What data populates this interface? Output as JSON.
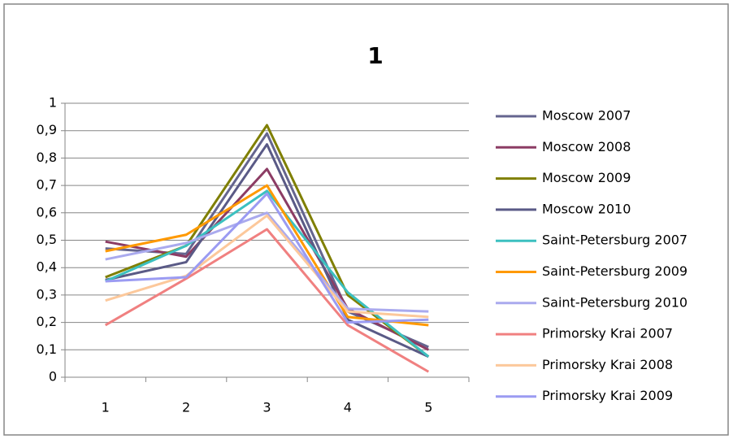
{
  "chart_data": {
    "type": "line",
    "title": "1",
    "categories": [
      "1",
      "2",
      "3",
      "4",
      "5"
    ],
    "ylim": [
      0,
      1
    ],
    "yticks": [
      0,
      {
        "value": 0.1,
        "label": "0,1"
      },
      {
        "value": 0.2,
        "label": "0,2"
      },
      {
        "value": 0.3,
        "label": "0,3"
      },
      {
        "value": 0.4,
        "label": "0,4"
      },
      {
        "value": 0.5,
        "label": "0,5"
      },
      {
        "value": 0.6,
        "label": "0,6"
      },
      {
        "value": 0.7,
        "label": "0,7"
      },
      {
        "value": 0.8,
        "label": "0,8"
      },
      {
        "value": 0.9,
        "label": "0,9"
      },
      1
    ],
    "grid": true,
    "legend": "right",
    "series": [
      {
        "name": "Moscow 2007",
        "color": "#65658f",
        "values": [
          0.47,
          0.45,
          0.89,
          0.24,
          0.11
        ]
      },
      {
        "name": "Moscow 2008",
        "color": "#8c3c64",
        "values": [
          0.495,
          0.44,
          0.76,
          0.25,
          0.1
        ]
      },
      {
        "name": "Moscow 2009",
        "color": "#7f7f00",
        "values": [
          0.365,
          0.48,
          0.92,
          0.3,
          0.075
        ]
      },
      {
        "name": "Moscow 2010",
        "color": "#5a5a86",
        "values": [
          0.355,
          0.42,
          0.85,
          0.21,
          0.075
        ]
      },
      {
        "name": "Saint-Petersburg 2007",
        "color": "#3cc0c0",
        "values": [
          0.35,
          0.48,
          0.68,
          0.31,
          0.075
        ]
      },
      {
        "name": "Saint-Petersburg 2009",
        "color": "#ff9900",
        "values": [
          0.46,
          0.52,
          0.7,
          0.22,
          0.19
        ]
      },
      {
        "name": "Saint-Petersburg 2010",
        "color": "#aaaaee",
        "values": [
          0.43,
          0.49,
          0.6,
          0.25,
          0.24
        ]
      },
      {
        "name": "Primorsky Krai 2007",
        "color": "#f08080",
        "values": [
          0.19,
          0.36,
          0.54,
          0.19,
          0.02
        ]
      },
      {
        "name": "Primorsky Krai 2008",
        "color": "#fcc89b",
        "values": [
          0.28,
          0.37,
          0.59,
          0.24,
          0.22
        ]
      },
      {
        "name": "Primorsky Krai 2009",
        "color": "#9b9bf2",
        "values": [
          0.35,
          0.365,
          0.67,
          0.2,
          0.21
        ]
      }
    ]
  }
}
